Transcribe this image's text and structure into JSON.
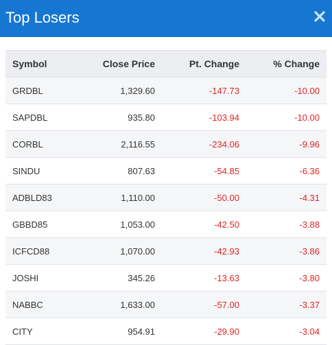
{
  "header": {
    "title": "Top Losers",
    "close_icon": "close-icon",
    "accent": "#1677d2"
  },
  "table": {
    "columns": [
      "Symbol",
      "Close Price",
      "Pt. Change",
      "% Change"
    ],
    "rows": [
      {
        "symbol": "GRDBL",
        "close": "1,329.60",
        "pt": "-147.73",
        "pct": "-10.00"
      },
      {
        "symbol": "SAPDBL",
        "close": "935.80",
        "pt": "-103.94",
        "pct": "-10.00"
      },
      {
        "symbol": "CORBL",
        "close": "2,116.55",
        "pt": "-234.06",
        "pct": "-9.96"
      },
      {
        "symbol": "SINDU",
        "close": "807.63",
        "pt": "-54.85",
        "pct": "-6.36"
      },
      {
        "symbol": "ADBLD83",
        "close": "1,110.00",
        "pt": "-50.00",
        "pct": "-4.31"
      },
      {
        "symbol": "GBBD85",
        "close": "1,053.00",
        "pt": "-42.50",
        "pct": "-3.88"
      },
      {
        "symbol": "ICFCD88",
        "close": "1,070.00",
        "pt": "-42.93",
        "pct": "-3.86"
      },
      {
        "symbol": "JOSHI",
        "close": "345.26",
        "pt": "-13.63",
        "pct": "-3.80"
      },
      {
        "symbol": "NABBC",
        "close": "1,633.00",
        "pt": "-57.00",
        "pct": "-3.37"
      },
      {
        "symbol": "CITY",
        "close": "954.91",
        "pt": "-29.90",
        "pct": "-3.04"
      }
    ],
    "negative_color": "#e02424"
  }
}
